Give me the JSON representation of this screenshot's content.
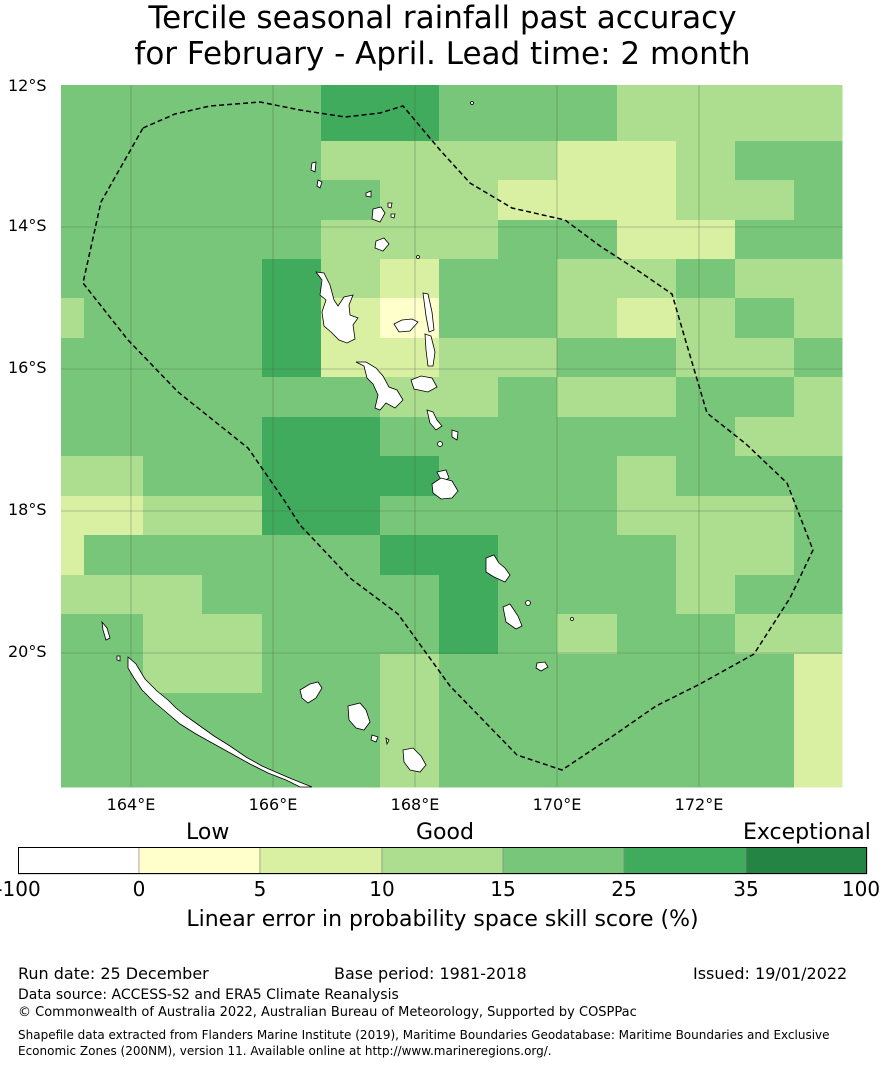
{
  "title_line1": "Tercile seasonal rainfall past accuracy",
  "title_line2": "for February - April. Lead time: 2 month",
  "map": {
    "lat_labels": [
      "12°S",
      "14°S",
      "16°S",
      "18°S",
      "20°S"
    ],
    "lon_labels": [
      "164°E",
      "166°E",
      "168°E",
      "170°E",
      "172°E"
    ],
    "lon_range": [
      163,
      174
    ],
    "lat_range": [
      -21.9,
      -12.0
    ],
    "cell_size_deg": 0.833,
    "land_color": "#ffffff",
    "coast_color": "#000000",
    "eez_line": "dashed"
  },
  "colorbar": {
    "category_labels": [
      "Low",
      "Good",
      "Exceptional"
    ],
    "boundaries": [
      "-100",
      "0",
      "5",
      "10",
      "15",
      "25",
      "35",
      "100"
    ],
    "colors": [
      "#ffffff",
      "#ffffcc",
      "#d9f0a3",
      "#addd8e",
      "#78c679",
      "#41ab5d",
      "#238443"
    ],
    "title": "Linear error in probability space skill score (%)"
  },
  "footer": {
    "run_date": "Run date: 25 December",
    "base_period": "Base period: 1981-2018",
    "issued": "Issued: 19/01/2022",
    "data_source": "Data source: ACCESS-S2 and ERA5 Climate Reanalysis",
    "copyright": "© Commonwealth of Australia 2022, Australian Bureau of Meteorology, Supported by COSPPac",
    "shapefile": "Shapefile data extracted from Flanders Marine Institute (2019), Maritime Boundaries Geodatabase: Maritime Boundaries and Exclusive Economic Zones (200NM), version 11. Available online at http://www.marineregions.org/."
  },
  "grid_rows": [
    "44444554443333",
    "44444333322344",
    "44444433222334",
    "44444333442244",
    "44445324433433",
    "34445214432343",
    "44445223344334",
    "44444433433443",
    "44445544444433",
    "33445554443444",
    "22335544443334",
    "24444455444334",
    "33344445444344",
    "44334445434433",
    "44334434444442",
    "44444434444442"
  ]
}
